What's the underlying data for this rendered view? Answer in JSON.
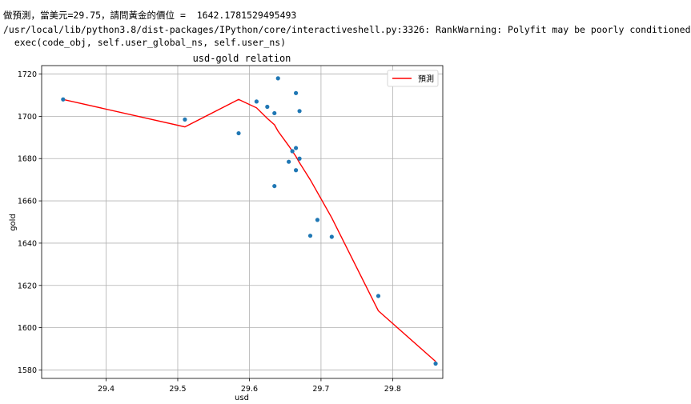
{
  "console": {
    "line1": "做預測，當美元=29.75，請問黃金的價位 =  1642.1781529495493",
    "line2": "/usr/local/lib/python3.8/dist-packages/IPython/core/interactiveshell.py:3326: RankWarning: Polyfit may be poorly conditioned",
    "line3": "  exec(code_obj, self.user_global_ns, self.user_ns)"
  },
  "chart_data": {
    "type": "scatter",
    "title": "usd-gold relation",
    "xlabel": "usd",
    "ylabel": "gold",
    "xlim": [
      29.31,
      29.87
    ],
    "ylim": [
      1576,
      1724
    ],
    "xticks": [
      29.4,
      29.5,
      29.6,
      29.7,
      29.8
    ],
    "yticks": [
      1580,
      1600,
      1620,
      1640,
      1660,
      1680,
      1700,
      1720
    ],
    "grid": true,
    "legend": {
      "position": "top-right",
      "entries": [
        "預測"
      ]
    },
    "colors": {
      "points": "#1f77b4",
      "line": "#ff0000"
    },
    "series": [
      {
        "kind": "scatter",
        "x": [
          29.34,
          29.51,
          29.585,
          29.61,
          29.625,
          29.635,
          29.635,
          29.64,
          29.655,
          29.66,
          29.665,
          29.665,
          29.665,
          29.67,
          29.67,
          29.685,
          29.695,
          29.715,
          29.78,
          29.86
        ],
        "y": [
          1708,
          1698.5,
          1692,
          1707,
          1704.5,
          1701.5,
          1667,
          1718,
          1678.5,
          1683.5,
          1711,
          1685,
          1674.5,
          1702.5,
          1680,
          1643.5,
          1651,
          1643,
          1615,
          1583
        ]
      },
      {
        "kind": "line",
        "name": "預測",
        "x": [
          29.34,
          29.51,
          29.585,
          29.61,
          29.625,
          29.635,
          29.64,
          29.655,
          29.665,
          29.67,
          29.685,
          29.715,
          29.78,
          29.86
        ],
        "y": [
          1708,
          1695,
          1708,
          1704,
          1699,
          1696,
          1693,
          1686,
          1681,
          1678,
          1670,
          1652,
          1608,
          1584
        ]
      }
    ]
  }
}
